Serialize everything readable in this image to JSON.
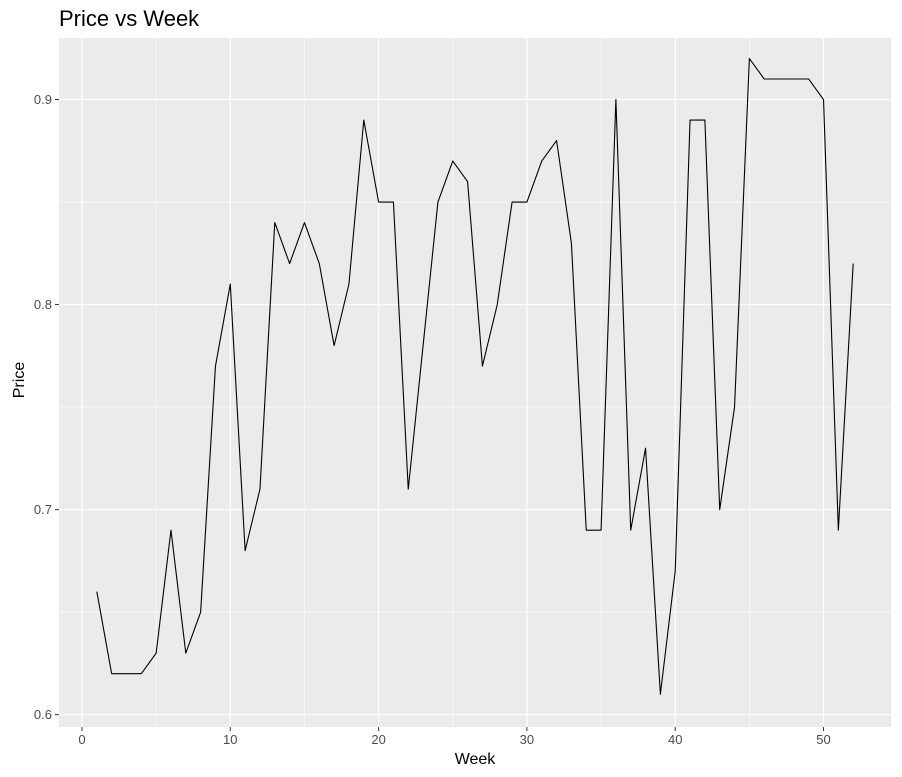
{
  "chart_data": {
    "type": "line",
    "title": "Price vs Week",
    "xlabel": "Week",
    "ylabel": "Price",
    "xlim": [
      -1.55,
      54.55
    ],
    "ylim": [
      0.594,
      0.93
    ],
    "x_ticks": [
      0,
      10,
      20,
      30,
      40,
      50
    ],
    "y_ticks": [
      0.6,
      0.7,
      0.8,
      0.9
    ],
    "x_tick_labels": [
      "0",
      "10",
      "20",
      "30",
      "40",
      "50"
    ],
    "y_tick_labels": [
      "0.6",
      "0.7",
      "0.8",
      "0.9"
    ],
    "grid": true,
    "background": "#ebebeb",
    "grid_color": "#ffffff",
    "line_color": "#000000",
    "series": [
      {
        "x": [
          1,
          2,
          3,
          4,
          5,
          6,
          7,
          8,
          9,
          10,
          11,
          12,
          13,
          14,
          15,
          16,
          17,
          18,
          19,
          20,
          21,
          22,
          23,
          24,
          25,
          26,
          27,
          28,
          29,
          30,
          31,
          32,
          33,
          34,
          35,
          36,
          37,
          38,
          39,
          40,
          41,
          42,
          43,
          44,
          45,
          46,
          47,
          48,
          49,
          50,
          51,
          52
        ],
        "values": [
          0.66,
          0.62,
          0.62,
          0.62,
          0.63,
          0.69,
          0.63,
          0.65,
          0.77,
          0.81,
          0.68,
          0.71,
          0.84,
          0.82,
          0.84,
          0.82,
          0.78,
          0.81,
          0.89,
          0.85,
          0.85,
          0.71,
          0.78,
          0.85,
          0.87,
          0.86,
          0.77,
          0.8,
          0.85,
          0.85,
          0.87,
          0.88,
          0.83,
          0.69,
          0.69,
          0.9,
          0.69,
          0.73,
          0.61,
          0.67,
          0.89,
          0.89,
          0.7,
          0.75,
          0.92,
          0.91,
          0.91,
          0.91,
          0.91,
          0.9,
          0.69,
          0.82
        ]
      }
    ]
  }
}
